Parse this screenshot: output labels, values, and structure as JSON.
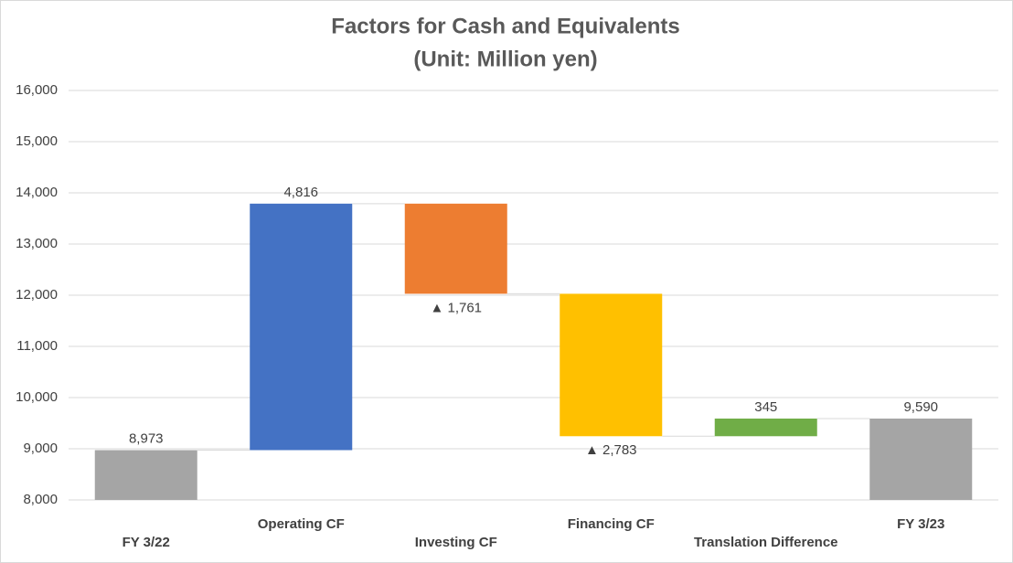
{
  "chart_data": {
    "type": "waterfall",
    "title": "Factors for Cash and Equivalents",
    "subtitle": "(Unit: Million yen)",
    "categories": [
      "FY 3/22",
      "Operating CF",
      "Investing CF",
      "Financing CF",
      "Translation Difference",
      "FY 3/23"
    ],
    "values": [
      8973,
      4816,
      -1761,
      -2783,
      345,
      9590
    ],
    "value_labels": [
      "8,973",
      "4,816",
      "▲ 1,761",
      "▲ 2,783",
      "345",
      "9,590"
    ],
    "is_total": [
      true,
      false,
      false,
      false,
      false,
      true
    ],
    "colors": [
      "#a5a5a5",
      "#4472c4",
      "#ed7d31",
      "#ffc000",
      "#70ad47",
      "#a5a5a5"
    ],
    "ylim": [
      8000,
      16000
    ],
    "yticks": [
      {
        "value": 8000,
        "label": "8,000"
      },
      {
        "value": 9000,
        "label": "9,000"
      },
      {
        "value": 10000,
        "label": "10,000"
      },
      {
        "value": 11000,
        "label": "11,000"
      },
      {
        "value": 12000,
        "label": "12,000"
      },
      {
        "value": 13000,
        "label": "13,000"
      },
      {
        "value": 14000,
        "label": "14,000"
      },
      {
        "value": 15000,
        "label": "15,000"
      },
      {
        "value": 16000,
        "label": "16,000"
      }
    ],
    "grid": true
  }
}
